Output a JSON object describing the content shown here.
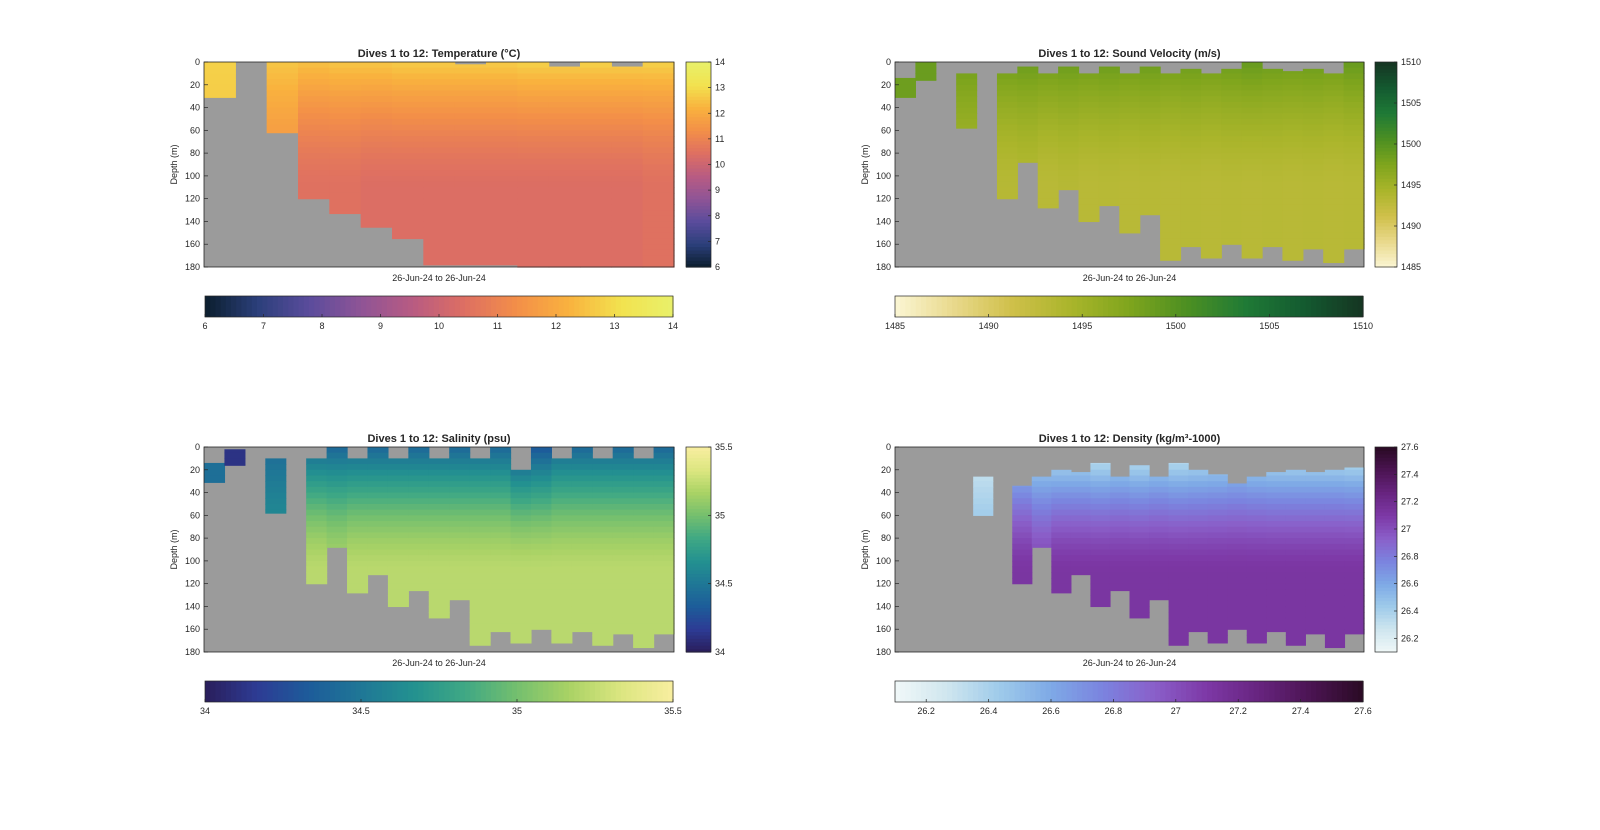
{
  "colors": {
    "nodata": "#9b9b9b",
    "axis": "#262626",
    "background": "#ffffff"
  },
  "chart_data": [
    {
      "type": "heatmap",
      "id": "temperature",
      "title": "Dives 1 to 12: Temperature (°C)",
      "ylabel": "Depth (m)",
      "xlabel": "26-Jun-24 to 26-Jun-24",
      "ylim": [
        0,
        180
      ],
      "yticks": [
        "0",
        "20",
        "40",
        "60",
        "80",
        "100",
        "120",
        "140",
        "160",
        "180"
      ],
      "clim": [
        6,
        14
      ],
      "colorbar_ticks": [
        "6",
        "7",
        "8",
        "9",
        "10",
        "11",
        "12",
        "13",
        "14"
      ],
      "colormap": [
        "#0b1e2d",
        "#2b3f7a",
        "#5a4c9c",
        "#8f5496",
        "#b85b82",
        "#de6f62",
        "#f38f48",
        "#f9b23e",
        "#f2e24f",
        "#e8f06a"
      ],
      "columns": [
        {
          "top": 0,
          "bottom": 31,
          "surface": 12.8,
          "deep": 12.6
        },
        {
          "top": 0,
          "bottom": 0,
          "surface": 12.5,
          "deep": 12.5
        },
        {
          "top": 0,
          "bottom": 62,
          "surface": 12.6,
          "deep": 11.4
        },
        {
          "top": 0,
          "bottom": 120,
          "surface": 12.5,
          "deep": 10.5
        },
        {
          "top": 0,
          "bottom": 133,
          "surface": 12.6,
          "deep": 10.5
        },
        {
          "top": 0,
          "bottom": 145,
          "surface": 12.6,
          "deep": 10.4
        },
        {
          "top": 0,
          "bottom": 155,
          "surface": 12.7,
          "deep": 10.4
        },
        {
          "top": 0,
          "bottom": 178,
          "surface": 12.7,
          "deep": 10.4
        },
        {
          "top": 2,
          "bottom": 178,
          "surface": 12.7,
          "deep": 10.4
        },
        {
          "top": 0,
          "bottom": 178,
          "surface": 12.7,
          "deep": 10.4
        },
        {
          "top": 0,
          "bottom": 180,
          "surface": 12.8,
          "deep": 10.4
        },
        {
          "top": 4,
          "bottom": 180,
          "surface": 12.8,
          "deep": 10.4
        },
        {
          "top": 0,
          "bottom": 180,
          "surface": 12.8,
          "deep": 10.4
        },
        {
          "top": 4,
          "bottom": 180,
          "surface": 12.8,
          "deep": 10.4
        },
        {
          "top": 0,
          "bottom": 180,
          "surface": 12.8,
          "deep": 10.5
        }
      ]
    },
    {
      "type": "heatmap",
      "id": "sound_velocity",
      "title": "Dives 1 to 12: Sound Velocity (m/s)",
      "ylabel": "Depth (m)",
      "xlabel": "26-Jun-24 to 26-Jun-24",
      "ylim": [
        0,
        180
      ],
      "yticks": [
        "0",
        "20",
        "40",
        "60",
        "80",
        "100",
        "120",
        "140",
        "160",
        "180"
      ],
      "clim": [
        1485,
        1510
      ],
      "colorbar_ticks": [
        "1485",
        "1490",
        "1495",
        "1500",
        "1505",
        "1510"
      ],
      "colormap": [
        "#fbf6d4",
        "#e9d98c",
        "#cfc04a",
        "#aab52b",
        "#7fa51d",
        "#4c8f22",
        "#1f7a36",
        "#145a30",
        "#153522"
      ],
      "columns": [
        {
          "top": 14,
          "bottom": 31,
          "surface": 1498.6,
          "deep": 1498.4
        },
        {
          "top": 0,
          "bottom": 16,
          "surface": 1498.8,
          "deep": 1498.6
        },
        {
          "top": 0,
          "bottom": 0,
          "surface": 1498,
          "deep": 1498
        },
        {
          "top": 10,
          "bottom": 58,
          "surface": 1498.5,
          "deep": 1494.5
        },
        {
          "top": 0,
          "bottom": 0,
          "surface": 1498,
          "deep": 1498
        },
        {
          "top": 10,
          "bottom": 120,
          "surface": 1498.6,
          "deep": 1493.4
        },
        {
          "top": 4,
          "bottom": 88,
          "surface": 1498.8,
          "deep": 1493.6
        },
        {
          "top": 10,
          "bottom": 128,
          "surface": 1498.6,
          "deep": 1493.2
        },
        {
          "top": 4,
          "bottom": 112,
          "surface": 1498.8,
          "deep": 1493.4
        },
        {
          "top": 10,
          "bottom": 140,
          "surface": 1498.6,
          "deep": 1493.2
        },
        {
          "top": 4,
          "bottom": 126,
          "surface": 1498.8,
          "deep": 1493.3
        },
        {
          "top": 10,
          "bottom": 150,
          "surface": 1498.6,
          "deep": 1493.2
        },
        {
          "top": 4,
          "bottom": 134,
          "surface": 1498.8,
          "deep": 1493.3
        },
        {
          "top": 10,
          "bottom": 174,
          "surface": 1498.5,
          "deep": 1493.2
        },
        {
          "top": 6,
          "bottom": 162,
          "surface": 1498.7,
          "deep": 1493.3
        },
        {
          "top": 10,
          "bottom": 172,
          "surface": 1498.5,
          "deep": 1493.2
        },
        {
          "top": 6,
          "bottom": 160,
          "surface": 1498.7,
          "deep": 1493.3
        },
        {
          "top": 0,
          "bottom": 172,
          "surface": 1499,
          "deep": 1493.2
        },
        {
          "top": 6,
          "bottom": 162,
          "surface": 1498.7,
          "deep": 1493.3
        },
        {
          "top": 8,
          "bottom": 174,
          "surface": 1498.6,
          "deep": 1493.2
        },
        {
          "top": 6,
          "bottom": 164,
          "surface": 1498.7,
          "deep": 1493.3
        },
        {
          "top": 10,
          "bottom": 176,
          "surface": 1498.5,
          "deep": 1493.2
        },
        {
          "top": 0,
          "bottom": 164,
          "surface": 1499,
          "deep": 1493.3
        }
      ]
    },
    {
      "type": "heatmap",
      "id": "salinity",
      "title": "Dives 1 to 12: Salinity (psu)",
      "ylabel": "Depth (m)",
      "xlabel": "26-Jun-24 to 26-Jun-24",
      "ylim": [
        0,
        180
      ],
      "yticks": [
        "0",
        "20",
        "40",
        "60",
        "80",
        "100",
        "120",
        "140",
        "160",
        "180"
      ],
      "clim": [
        34,
        35.5
      ],
      "colorbar_ticks": [
        "34",
        "34.5",
        "35",
        "35.5"
      ],
      "colormap": [
        "#2a1d5a",
        "#2d3b94",
        "#1d5c9a",
        "#1f7796",
        "#239190",
        "#3fa884",
        "#74bf6e",
        "#a9d265",
        "#dce680",
        "#f8eea0"
      ],
      "columns": [
        {
          "top": 14,
          "bottom": 31,
          "surface": 34.45,
          "deep": 34.45
        },
        {
          "top": 2,
          "bottom": 16,
          "surface": 34.12,
          "deep": 34.12
        },
        {
          "top": 0,
          "bottom": 0,
          "surface": 34.5,
          "deep": 34.5
        },
        {
          "top": 10,
          "bottom": 58,
          "surface": 34.42,
          "deep": 34.68
        },
        {
          "top": 0,
          "bottom": 0,
          "surface": 34.5,
          "deep": 34.5
        },
        {
          "top": 10,
          "bottom": 120,
          "surface": 34.4,
          "deep": 35.22
        },
        {
          "top": 0,
          "bottom": 88,
          "surface": 34.4,
          "deep": 35.18
        },
        {
          "top": 10,
          "bottom": 128,
          "surface": 34.4,
          "deep": 35.22
        },
        {
          "top": 0,
          "bottom": 112,
          "surface": 34.4,
          "deep": 35.22
        },
        {
          "top": 10,
          "bottom": 140,
          "surface": 34.4,
          "deep": 35.22
        },
        {
          "top": 0,
          "bottom": 126,
          "surface": 34.4,
          "deep": 35.22
        },
        {
          "top": 10,
          "bottom": 150,
          "surface": 34.4,
          "deep": 35.22
        },
        {
          "top": 0,
          "bottom": 134,
          "surface": 34.4,
          "deep": 35.22
        },
        {
          "top": 10,
          "bottom": 174,
          "surface": 34.4,
          "deep": 35.22
        },
        {
          "top": 0,
          "bottom": 162,
          "surface": 34.4,
          "deep": 35.22
        },
        {
          "top": 20,
          "bottom": 172,
          "surface": 34.25,
          "deep": 35.22
        },
        {
          "top": 0,
          "bottom": 160,
          "surface": 34.3,
          "deep": 35.22
        },
        {
          "top": 10,
          "bottom": 172,
          "surface": 34.4,
          "deep": 35.22
        },
        {
          "top": 0,
          "bottom": 162,
          "surface": 34.4,
          "deep": 35.22
        },
        {
          "top": 10,
          "bottom": 174,
          "surface": 34.4,
          "deep": 35.22
        },
        {
          "top": 0,
          "bottom": 164,
          "surface": 34.4,
          "deep": 35.22
        },
        {
          "top": 10,
          "bottom": 176,
          "surface": 34.4,
          "deep": 35.22
        },
        {
          "top": 0,
          "bottom": 164,
          "surface": 34.4,
          "deep": 35.22
        }
      ]
    },
    {
      "type": "heatmap",
      "id": "density",
      "title": "Dives 1 to 12: Density (kg/m³-1000)",
      "ylabel": "Depth (m)",
      "xlabel": "26-Jun-24 to 26-Jun-24",
      "ylim": [
        0,
        180
      ],
      "yticks": [
        "0",
        "20",
        "40",
        "60",
        "80",
        "100",
        "120",
        "140",
        "160",
        "180"
      ],
      "clim": [
        26.1,
        27.6
      ],
      "colorbar_ticks": [
        "26.2",
        "26.4",
        "26.6",
        "26.8",
        "27",
        "27.2",
        "27.4",
        "27.6"
      ],
      "colormap": [
        "#f1f8f8",
        "#cfe6ef",
        "#9fcbea",
        "#7ea9e6",
        "#7b83df",
        "#8a5fc9",
        "#7d38a6",
        "#67247f",
        "#4b1452",
        "#2a0a24"
      ],
      "columns": [
        {
          "top": 0,
          "bottom": 0,
          "surface": 26.5,
          "deep": 26.5
        },
        {
          "top": 0,
          "bottom": 0,
          "surface": 26.5,
          "deep": 26.5
        },
        {
          "top": 0,
          "bottom": 0,
          "surface": 26.5,
          "deep": 26.5
        },
        {
          "top": 0,
          "bottom": 0,
          "surface": 26.5,
          "deep": 26.5
        },
        {
          "top": 26,
          "bottom": 60,
          "surface": 26.22,
          "deep": 26.5
        },
        {
          "top": 0,
          "bottom": 0,
          "surface": 26.5,
          "deep": 26.5
        },
        {
          "top": 34,
          "bottom": 120,
          "surface": 26.3,
          "deep": 27.12
        },
        {
          "top": 26,
          "bottom": 88,
          "surface": 26.25,
          "deep": 27.05
        },
        {
          "top": 20,
          "bottom": 128,
          "surface": 26.22,
          "deep": 27.12
        },
        {
          "top": 22,
          "bottom": 112,
          "surface": 26.22,
          "deep": 27.12
        },
        {
          "top": 14,
          "bottom": 140,
          "surface": 26.18,
          "deep": 27.12
        },
        {
          "top": 26,
          "bottom": 126,
          "surface": 26.22,
          "deep": 27.12
        },
        {
          "top": 16,
          "bottom": 150,
          "surface": 26.18,
          "deep": 27.12
        },
        {
          "top": 26,
          "bottom": 134,
          "surface": 26.22,
          "deep": 27.12
        },
        {
          "top": 14,
          "bottom": 174,
          "surface": 26.18,
          "deep": 27.12
        },
        {
          "top": 20,
          "bottom": 162,
          "surface": 26.2,
          "deep": 27.12
        },
        {
          "top": 24,
          "bottom": 172,
          "surface": 26.22,
          "deep": 27.12
        },
        {
          "top": 32,
          "bottom": 160,
          "surface": 26.25,
          "deep": 27.12
        },
        {
          "top": 26,
          "bottom": 172,
          "surface": 26.22,
          "deep": 27.12
        },
        {
          "top": 22,
          "bottom": 162,
          "surface": 26.2,
          "deep": 27.12
        },
        {
          "top": 20,
          "bottom": 174,
          "surface": 26.2,
          "deep": 27.12
        },
        {
          "top": 22,
          "bottom": 164,
          "surface": 26.2,
          "deep": 27.12
        },
        {
          "top": 20,
          "bottom": 176,
          "surface": 26.2,
          "deep": 27.12
        },
        {
          "top": 18,
          "bottom": 164,
          "surface": 26.18,
          "deep": 27.12
        }
      ]
    }
  ]
}
